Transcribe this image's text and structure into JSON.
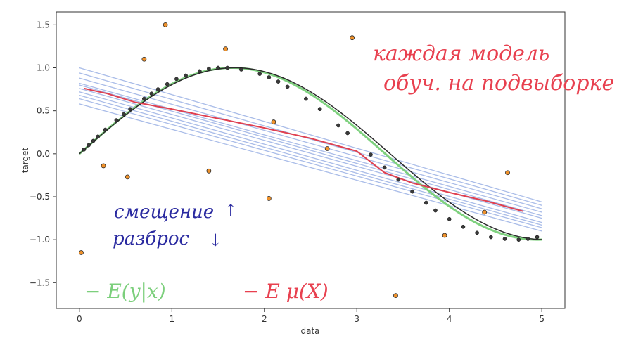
{
  "chart_data": {
    "type": "line",
    "xlabel": "data",
    "ylabel": "target",
    "xlim": [
      -0.25,
      5.25
    ],
    "ylim": [
      -1.8,
      1.65
    ],
    "x_ticks": [
      0,
      1,
      2,
      3,
      4,
      5
    ],
    "y_ticks": [
      -1.5,
      -1.0,
      -0.5,
      0.0,
      0.5,
      1.0,
      1.5
    ],
    "x_tick_labels": [
      "0",
      "1",
      "2",
      "3",
      "4",
      "5"
    ],
    "y_tick_labels": [
      "−1.5",
      "−1.0",
      "−0.5",
      "0.0",
      "0.5",
      "1.0",
      "1.5"
    ],
    "grid": false,
    "colors": {
      "true_function": "#7fd17f",
      "fit_black": "#2b2b2b",
      "ensemble_lines": "#a9bce8",
      "mean_model": "#e04050",
      "noisy_points": "#f0922b",
      "clean_points": "#3a3a3a"
    },
    "ensemble_lines": [
      [
        [
          0.0,
          1.0
        ],
        [
          5.0,
          -0.56
        ]
      ],
      [
        [
          0.0,
          0.94
        ],
        [
          5.0,
          -0.6
        ]
      ],
      [
        [
          0.0,
          0.88
        ],
        [
          5.0,
          -0.64
        ]
      ],
      [
        [
          0.0,
          0.82
        ],
        [
          5.0,
          -0.68
        ]
      ],
      [
        [
          0.0,
          0.8
        ],
        [
          5.0,
          -0.72
        ]
      ],
      [
        [
          0.0,
          0.76
        ],
        [
          5.0,
          -0.75
        ]
      ],
      [
        [
          0.0,
          0.72
        ],
        [
          5.0,
          -0.8
        ]
      ],
      [
        [
          0.0,
          0.68
        ],
        [
          5.0,
          -0.83
        ]
      ],
      [
        [
          0.0,
          0.64
        ],
        [
          5.0,
          -0.86
        ]
      ],
      [
        [
          0.0,
          0.58
        ],
        [
          5.0,
          -0.9
        ]
      ]
    ],
    "mean_model": {
      "x": [
        0.05,
        0.3,
        0.6,
        1.0,
        1.5,
        2.0,
        2.5,
        3.0,
        3.3,
        3.6,
        4.0,
        4.4,
        4.8
      ],
      "y": [
        0.76,
        0.7,
        0.6,
        0.52,
        0.41,
        0.3,
        0.18,
        0.03,
        -0.22,
        -0.34,
        -0.45,
        -0.55,
        -0.67
      ]
    },
    "noisy_points": {
      "x": [
        0.02,
        0.26,
        0.52,
        0.7,
        0.93,
        1.4,
        1.58,
        2.05,
        2.1,
        2.68,
        2.95,
        3.42,
        3.95,
        4.38,
        4.63
      ],
      "y": [
        -1.15,
        -0.14,
        -0.27,
        1.1,
        1.5,
        -0.2,
        1.22,
        -0.52,
        0.37,
        0.06,
        1.35,
        -1.65,
        -0.95,
        -0.68,
        -0.22
      ]
    },
    "clean_points": {
      "x": [
        0.05,
        0.1,
        0.15,
        0.2,
        0.28,
        0.4,
        0.48,
        0.55,
        0.7,
        0.78,
        0.85,
        0.95,
        1.05,
        1.15,
        1.3,
        1.4,
        1.5,
        1.6,
        1.75,
        1.95,
        2.05,
        2.15,
        2.25,
        2.45,
        2.6,
        2.8,
        2.9,
        3.15,
        3.3,
        3.45,
        3.6,
        3.75,
        3.85,
        4.0,
        4.15,
        4.3,
        4.45,
        4.6,
        4.75,
        4.85,
        4.95
      ],
      "y": [
        0.05,
        0.1,
        0.15,
        0.2,
        0.28,
        0.39,
        0.46,
        0.52,
        0.64,
        0.7,
        0.75,
        0.81,
        0.87,
        0.91,
        0.96,
        0.99,
        1.0,
        1.0,
        0.98,
        0.93,
        0.89,
        0.84,
        0.78,
        0.64,
        0.52,
        0.33,
        0.24,
        -0.01,
        -0.16,
        -0.3,
        -0.44,
        -0.57,
        -0.66,
        -0.76,
        -0.85,
        -0.92,
        -0.97,
        -0.99,
        -1.0,
        -0.99,
        -0.97
      ]
    },
    "annotations": {
      "top_right_line1": "каждая модель",
      "top_right_line2": "обуч. на подвыборке",
      "bias_label": "смещение",
      "bias_arrow": "↑",
      "variance_label": "разброс",
      "variance_arrow": "↓",
      "legend_green": "− E(y|x)",
      "legend_red": "− E μ(X)"
    }
  }
}
